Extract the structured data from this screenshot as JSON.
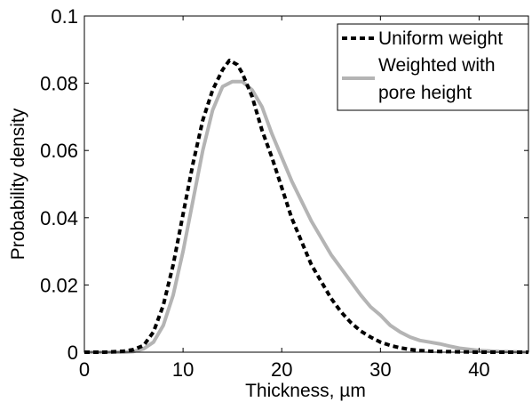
{
  "chart_data": {
    "type": "line",
    "xlabel": "Thickness, µm",
    "ylabel": "Probability density",
    "xlim": [
      0,
      45
    ],
    "ylim": [
      0,
      0.1
    ],
    "x_ticks": [
      0,
      10,
      20,
      30,
      40
    ],
    "y_ticks": [
      0,
      0.02,
      0.04,
      0.06,
      0.08,
      0.1
    ],
    "x_tick_labels": [
      "0",
      "10",
      "20",
      "30",
      "40"
    ],
    "y_tick_labels": [
      "0",
      "0.02",
      "0.04",
      "0.06",
      "0.08",
      "0.1"
    ],
    "grid": false,
    "legend_position": "top-right",
    "series": [
      {
        "name": "Uniform weight",
        "style": "dashed",
        "color": "#000000",
        "x": [
          0,
          2,
          4,
          5,
          6,
          7,
          8,
          9,
          10,
          11,
          12,
          13,
          14,
          14.7,
          15.5,
          16,
          17,
          18,
          19,
          20,
          21,
          22,
          23,
          24,
          25,
          26,
          27,
          28,
          29,
          30,
          31,
          32,
          33,
          34,
          35,
          36,
          38,
          40,
          42,
          45
        ],
        "y": [
          0,
          0,
          0.0003,
          0.0008,
          0.002,
          0.006,
          0.014,
          0.026,
          0.041,
          0.056,
          0.069,
          0.078,
          0.084,
          0.0868,
          0.0855,
          0.083,
          0.076,
          0.066,
          0.058,
          0.049,
          0.04,
          0.033,
          0.026,
          0.021,
          0.016,
          0.012,
          0.0088,
          0.0063,
          0.0045,
          0.003,
          0.002,
          0.0013,
          0.0008,
          0.0005,
          0.0003,
          0.0002,
          0.0001,
          0,
          0,
          0
        ]
      },
      {
        "name": "Weighted with pore height",
        "style": "solid",
        "color": "#b4b4b4",
        "x": [
          0,
          2,
          4,
          5,
          6,
          7,
          8,
          9,
          10,
          11,
          12,
          13,
          14,
          15,
          16,
          17,
          18,
          19,
          20,
          21,
          22,
          23,
          24,
          25,
          26,
          27,
          28,
          29,
          30,
          31,
          32,
          33,
          34,
          35,
          36,
          37,
          38,
          40,
          42,
          45
        ],
        "y": [
          0,
          0,
          0,
          0.0002,
          0.001,
          0.003,
          0.008,
          0.017,
          0.03,
          0.045,
          0.06,
          0.072,
          0.079,
          0.0805,
          0.0805,
          0.078,
          0.073,
          0.065,
          0.058,
          0.051,
          0.045,
          0.039,
          0.034,
          0.029,
          0.025,
          0.021,
          0.017,
          0.0135,
          0.011,
          0.008,
          0.006,
          0.0045,
          0.0035,
          0.003,
          0.0025,
          0.0018,
          0.0012,
          0.0005,
          0.0002,
          0
        ]
      }
    ]
  },
  "legend": {
    "items": [
      {
        "label_lines": [
          "Uniform weight"
        ]
      },
      {
        "label_lines": [
          "Weighted with",
          "pore height"
        ]
      }
    ]
  }
}
